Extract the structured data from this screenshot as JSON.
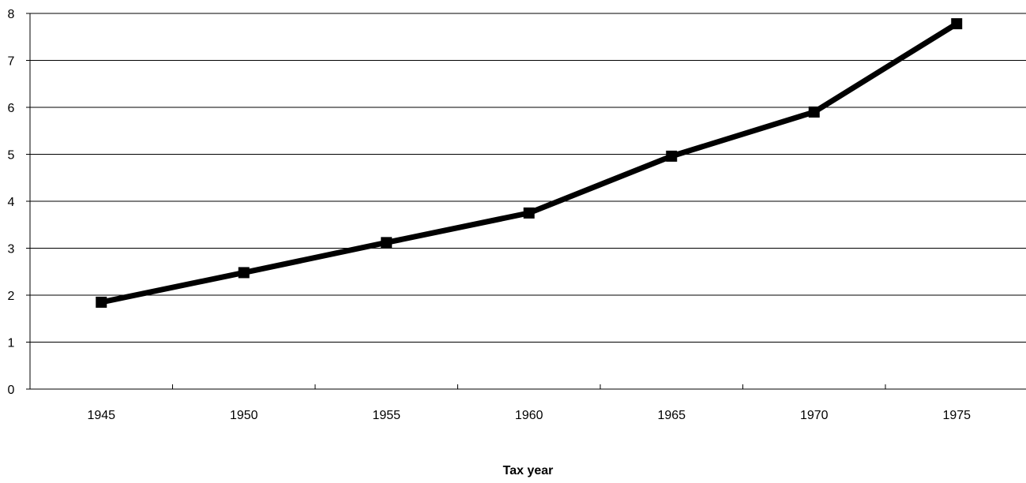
{
  "chart_data": {
    "type": "line",
    "title": "",
    "xlabel": "Tax year",
    "ylabel": "",
    "categories": [
      "1945",
      "1950",
      "1955",
      "1960",
      "1965",
      "1970",
      "1975"
    ],
    "series": [
      {
        "values": [
          1.85,
          2.48,
          3.12,
          3.75,
          4.96,
          5.9,
          7.78
        ],
        "color": "#000000",
        "marker": "square"
      }
    ],
    "ylim": [
      0,
      8
    ],
    "yticks": [
      "0",
      "1",
      "2",
      "3",
      "4",
      "5",
      "6",
      "7",
      "8"
    ],
    "grid": true,
    "legend": "none"
  }
}
